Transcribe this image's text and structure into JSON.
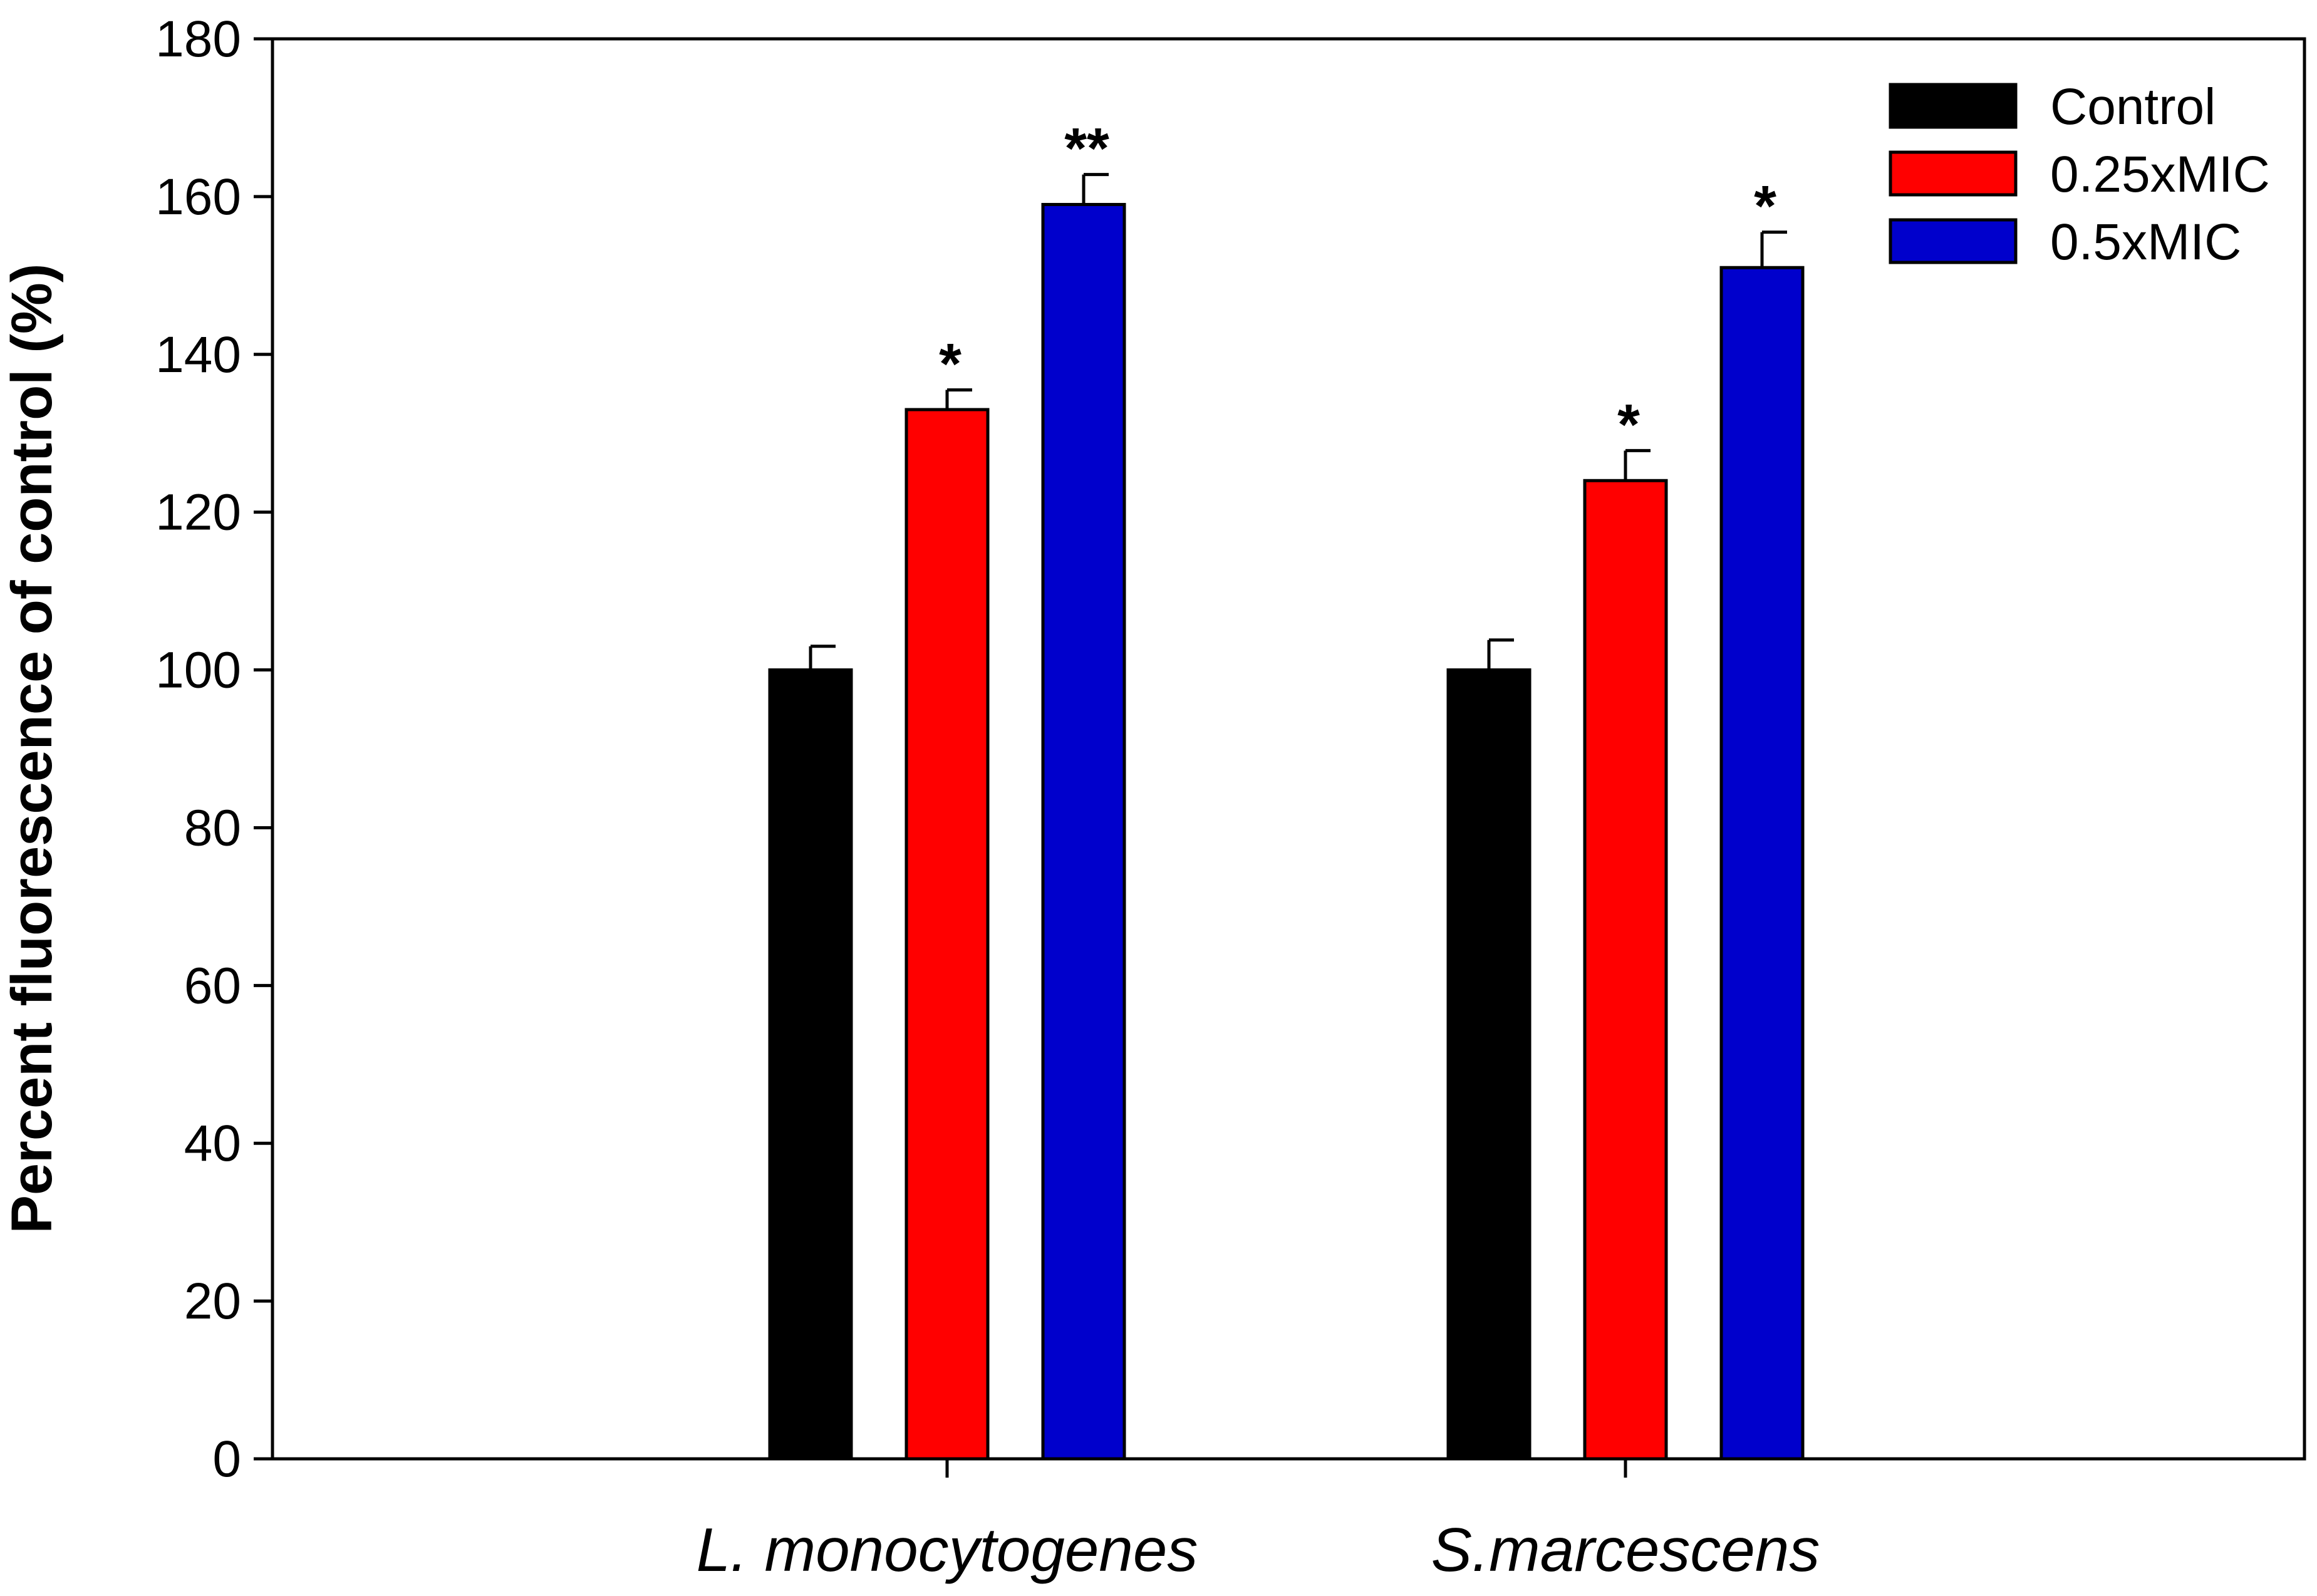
{
  "chart_data": {
    "type": "bar",
    "title": "",
    "xlabel": "",
    "ylabel": "Percent fluorescence of control (%)",
    "ylim": [
      0,
      180
    ],
    "yticks": [
      0,
      20,
      40,
      60,
      80,
      100,
      120,
      140,
      160,
      180
    ],
    "categories": [
      "L. monocytogenes",
      "S.marcescens"
    ],
    "series": [
      {
        "name": "Control",
        "color": "#000000",
        "values": [
          100,
          100
        ],
        "errors": [
          3,
          3.8
        ],
        "significance": [
          "",
          ""
        ]
      },
      {
        "name": "0.25xMIC",
        "color": "#ff0000",
        "values": [
          133,
          124
        ],
        "errors": [
          2.5,
          3.8
        ],
        "significance": [
          "*",
          "*"
        ]
      },
      {
        "name": "0.5xMIC",
        "color": "#0000cc",
        "values": [
          159,
          151
        ],
        "errors": [
          3.8,
          4.5
        ],
        "significance": [
          "**",
          "*"
        ]
      }
    ],
    "legend_position": "top-right",
    "grid": false
  }
}
